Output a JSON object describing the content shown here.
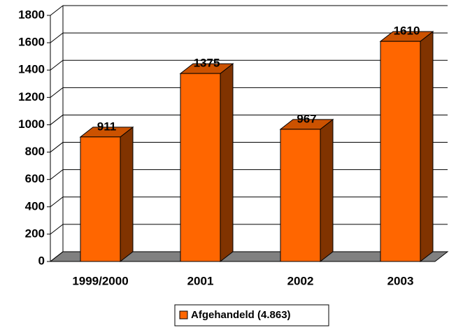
{
  "chart_data": {
    "type": "bar3d",
    "categories": [
      "1999/2000",
      "2001",
      "2002",
      "2003"
    ],
    "series": [
      {
        "name": "Afgehandeld (4.863)",
        "color": "#ff6600",
        "values": [
          911,
          1375,
          967,
          1610
        ]
      }
    ],
    "ylim": [
      0,
      1800
    ],
    "yticks": [
      0,
      200,
      400,
      600,
      800,
      1000,
      1200,
      1400,
      1600,
      1800
    ],
    "grid": true,
    "legend": "bottom"
  }
}
